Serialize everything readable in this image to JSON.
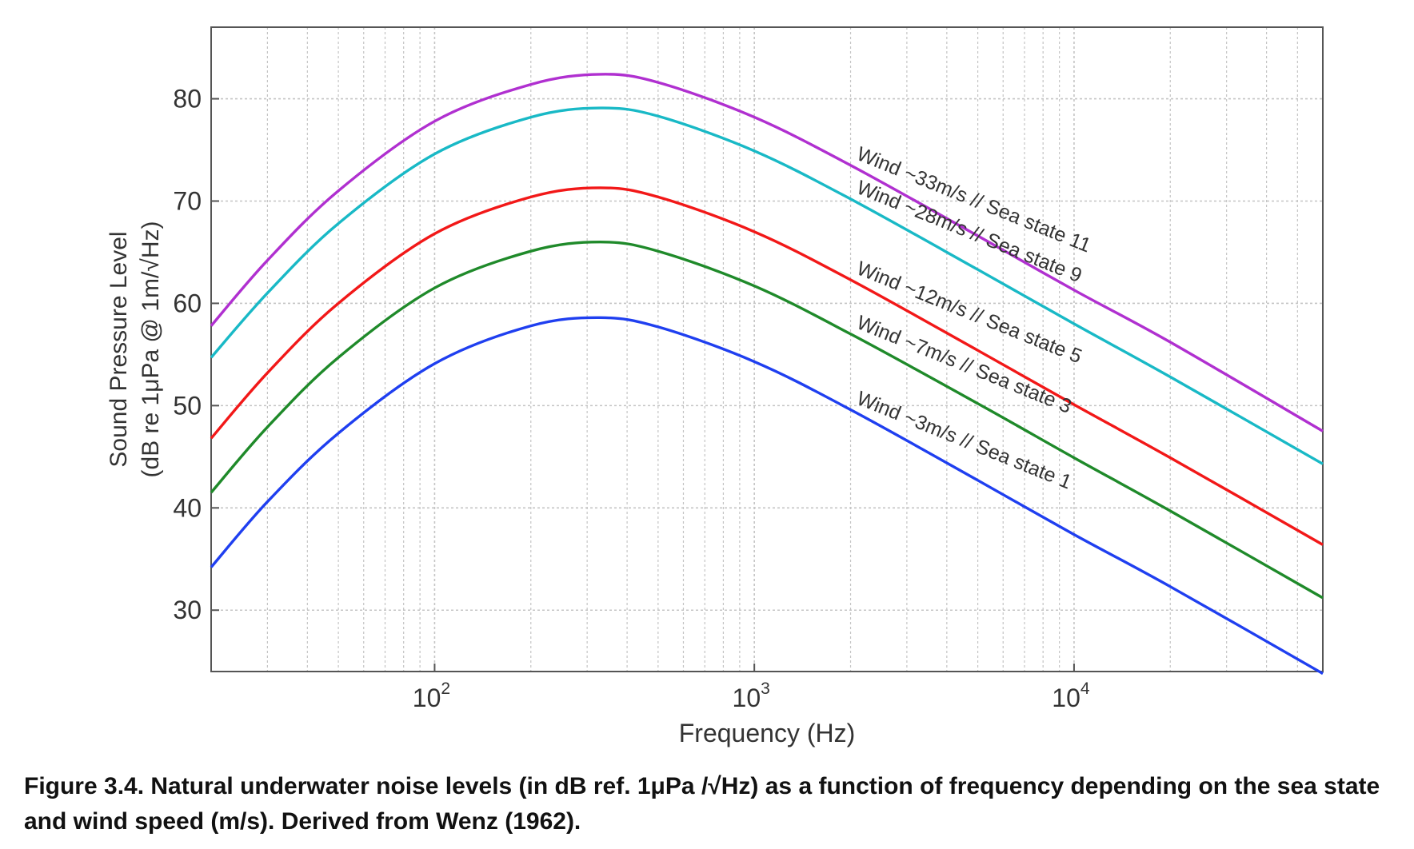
{
  "chart_data": {
    "type": "line",
    "xscale": "log",
    "xlim": [
      20,
      60000
    ],
    "ylim": [
      24,
      87
    ],
    "grid": true,
    "xlabel": "Frequency (Hz)",
    "ylabel_line1": "Sound Pressure Level",
    "ylabel_line2": "(dB re 1μPa @ 1m/√Hz)",
    "yticks": [
      30,
      40,
      50,
      60,
      70,
      80
    ],
    "xticks": [
      {
        "base": "10",
        "exp": "2",
        "value": 100
      },
      {
        "base": "10",
        "exp": "3",
        "value": 1000
      },
      {
        "base": "10",
        "exp": "4",
        "value": 10000
      }
    ],
    "x": [
      20,
      30,
      50,
      100,
      200,
      330,
      500,
      1000,
      2000,
      5000,
      10000,
      20000,
      60000
    ],
    "series": [
      {
        "name": "Wind ~33m/s // Sea state 11",
        "color": "#b030d0",
        "values": [
          57.8,
          64.2,
          71.0,
          77.8,
          81.4,
          82.4,
          81.6,
          78.2,
          73.5,
          66.6,
          61.3,
          56.2,
          47.5
        ]
      },
      {
        "name": "Wind ~28m/s // Sea state 9",
        "color": "#19b9c6",
        "values": [
          54.7,
          61.0,
          67.8,
          74.6,
          78.2,
          79.1,
          78.3,
          74.9,
          70.2,
          63.3,
          58.0,
          52.8,
          44.3
        ]
      },
      {
        "name": "Wind ~12m/s // Sea state 5",
        "color": "#f21818",
        "values": [
          46.8,
          53.2,
          60.0,
          66.8,
          70.4,
          71.3,
          70.4,
          67.0,
          62.3,
          55.4,
          50.1,
          44.9,
          36.4
        ]
      },
      {
        "name": "Wind ~7m/s // Sea state 3",
        "color": "#1f8a2a",
        "values": [
          41.5,
          47.9,
          54.7,
          61.5,
          65.1,
          66.0,
          65.1,
          61.7,
          57.0,
          50.2,
          44.9,
          39.7,
          31.2
        ]
      },
      {
        "name": "Wind ~3m/s // Sea state 1",
        "color": "#1f3ff0",
        "values": [
          34.2,
          40.6,
          47.3,
          54.1,
          57.8,
          58.6,
          57.7,
          54.3,
          49.6,
          42.7,
          37.4,
          32.3,
          23.8
        ]
      }
    ],
    "annotation_angle_deg": 22
  },
  "caption": "Figure 3.4. Natural underwater noise levels (in dB ref. 1μPa /√Hz) as a function of frequency depending on the sea state and wind speed (m/s). Derived from Wenz (1962)."
}
